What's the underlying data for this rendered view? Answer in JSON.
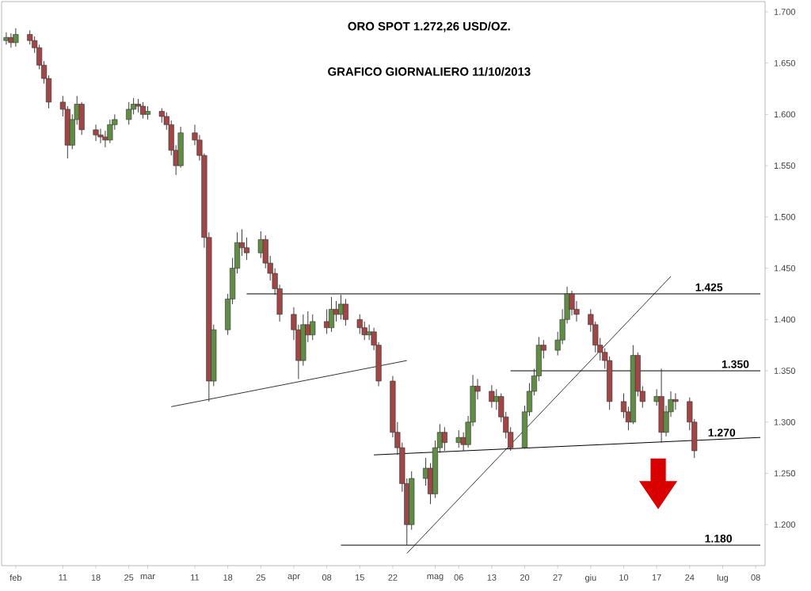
{
  "chart_data": {
    "type": "candlestick",
    "title": "ORO SPOT 1.272,26 USD/OZ.",
    "subtitle": "GRAFICO GIORNALIERO 11/10/2013",
    "x": [
      "2013-01-30",
      "2013-01-31",
      "2013-02-01",
      "2013-02-04",
      "2013-02-05",
      "2013-02-06",
      "2013-02-07",
      "2013-02-08",
      "2013-02-11",
      "2013-02-12",
      "2013-02-13",
      "2013-02-14",
      "2013-02-15",
      "2013-02-18",
      "2013-02-19",
      "2013-02-20",
      "2013-02-21",
      "2013-02-22",
      "2013-02-25",
      "2013-02-26",
      "2013-02-27",
      "2013-02-28",
      "2013-03-01",
      "2013-03-04",
      "2013-03-05",
      "2013-03-06",
      "2013-03-07",
      "2013-03-08",
      "2013-03-11",
      "2013-03-12",
      "2013-03-13",
      "2013-03-14",
      "2013-03-15",
      "2013-03-18",
      "2013-03-19",
      "2013-03-20",
      "2013-03-21",
      "2013-03-22",
      "2013-03-25",
      "2013-03-26",
      "2013-03-27",
      "2013-03-28",
      "2013-03-29",
      "2013-04-01",
      "2013-04-02",
      "2013-04-03",
      "2013-04-04",
      "2013-04-05",
      "2013-04-08",
      "2013-04-09",
      "2013-04-10",
      "2013-04-11",
      "2013-04-12",
      "2013-04-15",
      "2013-04-16",
      "2013-04-17",
      "2013-04-18",
      "2013-04-19",
      "2013-04-22",
      "2013-04-23",
      "2013-04-24",
      "2013-04-25",
      "2013-04-26",
      "2013-04-29",
      "2013-04-30",
      "2013-05-01",
      "2013-05-02",
      "2013-05-03",
      "2013-05-06",
      "2013-05-07",
      "2013-05-08",
      "2013-05-09",
      "2013-05-10",
      "2013-05-13",
      "2013-05-14",
      "2013-05-15",
      "2013-05-16",
      "2013-05-17",
      "2013-05-20",
      "2013-05-21",
      "2013-05-22",
      "2013-05-23",
      "2013-05-24",
      "2013-05-27",
      "2013-05-28",
      "2013-05-29",
      "2013-05-30",
      "2013-05-31",
      "2013-06-03",
      "2013-06-04",
      "2013-06-05",
      "2013-06-06",
      "2013-06-07",
      "2013-06-10",
      "2013-06-11",
      "2013-06-12",
      "2013-06-13",
      "2013-06-14",
      "2013-06-17",
      "2013-06-18",
      "2013-06-19",
      "2013-06-20",
      "2013-06-21",
      "2013-06-24",
      "2013-06-25"
    ],
    "ohlc": [
      [
        1672,
        1680,
        1668,
        1675
      ],
      [
        1675,
        1679,
        1665,
        1670
      ],
      [
        1670,
        1684,
        1666,
        1678
      ],
      [
        1678,
        1682,
        1668,
        1672
      ],
      [
        1672,
        1676,
        1660,
        1665
      ],
      [
        1665,
        1668,
        1644,
        1648
      ],
      [
        1648,
        1652,
        1630,
        1635
      ],
      [
        1635,
        1638,
        1606,
        1612
      ],
      [
        1612,
        1618,
        1598,
        1605
      ],
      [
        1605,
        1608,
        1557,
        1570
      ],
      [
        1570,
        1600,
        1566,
        1595
      ],
      [
        1595,
        1618,
        1590,
        1610
      ],
      [
        1610,
        1612,
        1580,
        1585
      ],
      [
        1585,
        1590,
        1574,
        1580
      ],
      [
        1580,
        1586,
        1572,
        1578
      ],
      [
        1578,
        1584,
        1568,
        1575
      ],
      [
        1575,
        1595,
        1572,
        1590
      ],
      [
        1590,
        1600,
        1585,
        1595
      ],
      [
        1595,
        1612,
        1590,
        1605
      ],
      [
        1605,
        1616,
        1600,
        1610
      ],
      [
        1610,
        1615,
        1602,
        1608
      ],
      [
        1608,
        1612,
        1596,
        1600
      ],
      [
        1600,
        1608,
        1595,
        1603
      ],
      [
        1603,
        1606,
        1592,
        1598
      ],
      [
        1598,
        1602,
        1585,
        1590
      ],
      [
        1590,
        1594,
        1560,
        1565
      ],
      [
        1565,
        1570,
        1541,
        1550
      ],
      [
        1550,
        1588,
        1548,
        1582
      ],
      [
        1582,
        1590,
        1570,
        1575
      ],
      [
        1575,
        1580,
        1555,
        1560
      ],
      [
        1560,
        1562,
        1470,
        1480
      ],
      [
        1480,
        1485,
        1320,
        1340
      ],
      [
        1340,
        1395,
        1335,
        1390
      ],
      [
        1390,
        1425,
        1385,
        1420
      ],
      [
        1420,
        1460,
        1415,
        1450
      ],
      [
        1450,
        1485,
        1445,
        1475
      ],
      [
        1475,
        1488,
        1462,
        1470
      ],
      [
        1470,
        1480,
        1458,
        1465
      ],
      [
        1465,
        1486,
        1460,
        1478
      ],
      [
        1478,
        1482,
        1450,
        1455
      ],
      [
        1455,
        1462,
        1438,
        1445
      ],
      [
        1445,
        1450,
        1424,
        1430
      ],
      [
        1430,
        1434,
        1398,
        1405
      ],
      [
        1405,
        1412,
        1380,
        1390
      ],
      [
        1390,
        1395,
        1342,
        1360
      ],
      [
        1360,
        1405,
        1355,
        1395
      ],
      [
        1395,
        1408,
        1378,
        1385
      ],
      [
        1385,
        1405,
        1380,
        1398
      ],
      [
        1398,
        1410,
        1386,
        1392
      ],
      [
        1392,
        1422,
        1388,
        1410
      ],
      [
        1410,
        1418,
        1398,
        1405
      ],
      [
        1405,
        1424,
        1400,
        1415
      ],
      [
        1415,
        1420,
        1394,
        1400
      ],
      [
        1400,
        1405,
        1386,
        1392
      ],
      [
        1392,
        1398,
        1380,
        1385
      ],
      [
        1385,
        1395,
        1380,
        1388
      ],
      [
        1388,
        1392,
        1370,
        1375
      ],
      [
        1375,
        1378,
        1335,
        1340
      ],
      [
        1340,
        1345,
        1285,
        1290
      ],
      [
        1290,
        1300,
        1268,
        1275
      ],
      [
        1275,
        1280,
        1232,
        1240
      ],
      [
        1240,
        1245,
        1180,
        1200
      ],
      [
        1200,
        1252,
        1195,
        1245
      ],
      [
        1245,
        1265,
        1238,
        1255
      ],
      [
        1255,
        1260,
        1220,
        1230
      ],
      [
        1230,
        1282,
        1226,
        1275
      ],
      [
        1275,
        1298,
        1270,
        1290
      ],
      [
        1290,
        1295,
        1272,
        1280
      ],
      [
        1280,
        1292,
        1275,
        1285
      ],
      [
        1285,
        1290,
        1272,
        1278
      ],
      [
        1278,
        1306,
        1275,
        1300
      ],
      [
        1300,
        1346,
        1296,
        1335
      ],
      [
        1335,
        1342,
        1322,
        1330
      ],
      [
        1330,
        1336,
        1314,
        1320
      ],
      [
        1320,
        1332,
        1312,
        1325
      ],
      [
        1325,
        1328,
        1300,
        1305
      ],
      [
        1305,
        1310,
        1284,
        1290
      ],
      [
        1290,
        1295,
        1272,
        1275
      ],
      [
        1275,
        1316,
        1274,
        1310
      ],
      [
        1310,
        1338,
        1306,
        1330
      ],
      [
        1330,
        1352,
        1326,
        1345
      ],
      [
        1345,
        1383,
        1340,
        1375
      ],
      [
        1375,
        1380,
        1362,
        1370
      ],
      [
        1370,
        1388,
        1365,
        1380
      ],
      [
        1380,
        1410,
        1376,
        1400
      ],
      [
        1400,
        1432,
        1396,
        1425
      ],
      [
        1425,
        1428,
        1404,
        1410
      ],
      [
        1410,
        1418,
        1398,
        1405
      ],
      [
        1405,
        1410,
        1388,
        1395
      ],
      [
        1395,
        1398,
        1368,
        1375
      ],
      [
        1375,
        1382,
        1360,
        1368
      ],
      [
        1368,
        1372,
        1352,
        1360
      ],
      [
        1360,
        1364,
        1312,
        1320
      ],
      [
        1320,
        1328,
        1304,
        1310
      ],
      [
        1310,
        1315,
        1292,
        1300
      ],
      [
        1300,
        1375,
        1298,
        1365
      ],
      [
        1365,
        1368,
        1325,
        1330
      ],
      [
        1330,
        1335,
        1314,
        1320
      ],
      [
        1320,
        1332,
        1316,
        1325
      ],
      [
        1325,
        1352,
        1280,
        1290
      ],
      [
        1290,
        1316,
        1286,
        1310
      ],
      [
        1310,
        1330,
        1305,
        1322
      ],
      [
        1322,
        1328,
        1312,
        1320
      ],
      [
        1320,
        1324,
        1292,
        1300
      ],
      [
        1300,
        1303,
        1265,
        1272
      ]
    ],
    "xlim": [
      "2013-01-29",
      "2013-07-10"
    ],
    "ylim": [
      1160,
      1710
    ],
    "xticks": [
      {
        "value": "2013-02-01",
        "label": "feb"
      },
      {
        "value": "2013-02-11",
        "label": "11"
      },
      {
        "value": "2013-02-18",
        "label": "18"
      },
      {
        "value": "2013-02-25",
        "label": "25"
      },
      {
        "value": "2013-03-01",
        "label": "mar"
      },
      {
        "value": "2013-03-11",
        "label": "11"
      },
      {
        "value": "2013-03-18",
        "label": "18"
      },
      {
        "value": "2013-03-25",
        "label": "25"
      },
      {
        "value": "2013-04-01",
        "label": "apr"
      },
      {
        "value": "2013-04-08",
        "label": "08"
      },
      {
        "value": "2013-04-15",
        "label": "15"
      },
      {
        "value": "2013-04-22",
        "label": "22"
      },
      {
        "value": "2013-05-01",
        "label": "mag"
      },
      {
        "value": "2013-05-06",
        "label": "06"
      },
      {
        "value": "2013-05-13",
        "label": "13"
      },
      {
        "value": "2013-05-20",
        "label": "20"
      },
      {
        "value": "2013-05-27",
        "label": "27"
      },
      {
        "value": "2013-06-03",
        "label": "giu"
      },
      {
        "value": "2013-06-10",
        "label": "10"
      },
      {
        "value": "2013-06-17",
        "label": "17"
      },
      {
        "value": "2013-06-24",
        "label": "24"
      },
      {
        "value": "2013-07-01",
        "label": "lug"
      },
      {
        "value": "2013-07-08",
        "label": "08"
      }
    ],
    "yticks": [
      {
        "value": 1200,
        "label": "1.200"
      },
      {
        "value": 1250,
        "label": "1.250"
      },
      {
        "value": 1300,
        "label": "1.300"
      },
      {
        "value": 1350,
        "label": "1.350"
      },
      {
        "value": 1400,
        "label": "1.400"
      },
      {
        "value": 1450,
        "label": "1.450"
      },
      {
        "value": 1500,
        "label": "1.500"
      },
      {
        "value": 1550,
        "label": "1.550"
      },
      {
        "value": 1600,
        "label": "1.600"
      },
      {
        "value": 1650,
        "label": "1.650"
      },
      {
        "value": 1700,
        "label": "1.700"
      }
    ],
    "series": [
      {
        "type": "line",
        "color": "#333333",
        "x": [
          "2013-03-06",
          "2013-04-25"
        ],
        "values": [
          1315,
          1360
        ]
      },
      {
        "type": "line",
        "color": "#333333",
        "x": [
          "2013-04-25",
          "2013-06-20"
        ],
        "values": [
          1172,
          1442
        ]
      },
      {
        "type": "line",
        "name": "1.425",
        "color": "#000000",
        "x": [
          "2013-03-22",
          "2013-07-09"
        ],
        "values": [
          1425,
          1425
        ]
      },
      {
        "type": "line",
        "name": "1.350",
        "color": "#000000",
        "x": [
          "2013-05-17",
          "2013-07-09"
        ],
        "values": [
          1350,
          1350
        ]
      },
      {
        "type": "line",
        "name": "1.270",
        "color": "#000000",
        "x": [
          "2013-04-18",
          "2013-07-09"
        ],
        "values": [
          1268,
          1285
        ]
      },
      {
        "type": "line",
        "name": "1.180",
        "color": "#000000",
        "x": [
          "2013-04-11",
          "2013-07-09"
        ],
        "values": [
          1180,
          1180
        ]
      }
    ]
  }
}
